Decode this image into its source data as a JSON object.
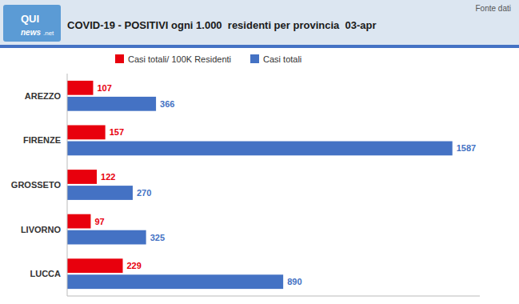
{
  "chart_data": {
    "type": "bar",
    "orientation": "horizontal",
    "title": "COVID-19 - POSITIVI ogni 1.000  residenti per provincia  03-apr",
    "annotations": [
      "Fonte dati",
      "QUI",
      "news",
      ".net"
    ],
    "categories": [
      "AREZZO",
      "FIRENZE",
      "GROSSETO",
      "LIVORNO",
      "LUCCA"
    ],
    "series": [
      {
        "name": "Casi totali/ 100K Residenti",
        "color": "#e8000d",
        "values": [
          107,
          157,
          122,
          97,
          229
        ]
      },
      {
        "name": "Casi totali",
        "color": "#4472c4",
        "values": [
          366,
          1587,
          270,
          325,
          890
        ]
      }
    ],
    "xlim": [
      0,
      1700
    ],
    "xticks": [],
    "tick_labels": "y",
    "data_labels": true,
    "grid": false,
    "legend": "top"
  }
}
